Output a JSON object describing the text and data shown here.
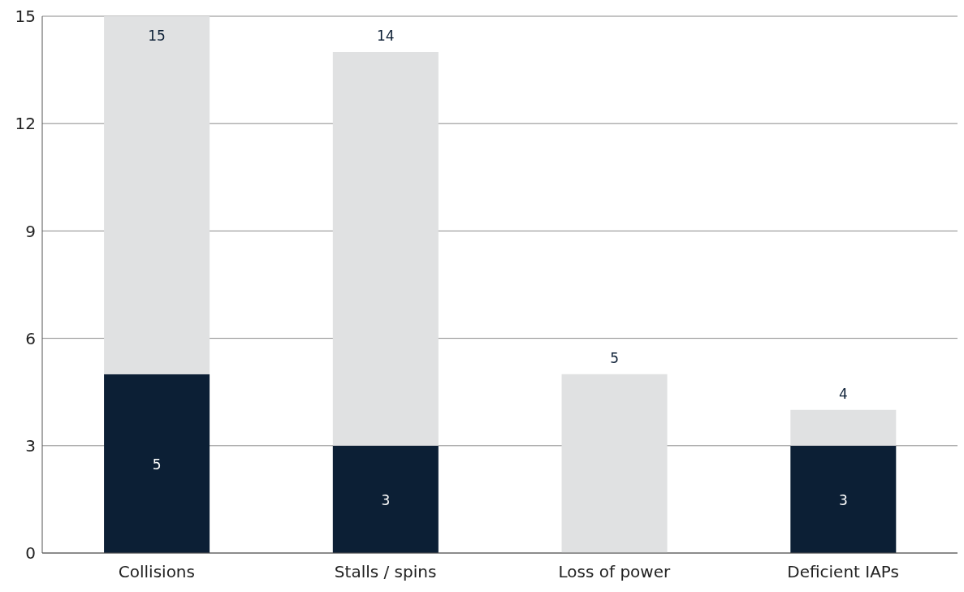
{
  "chart_data": {
    "type": "bar",
    "stacked": true,
    "categories": [
      "Collisions",
      "Stalls / spins",
      "Loss of power",
      "Deficient IAPs"
    ],
    "series": [
      {
        "color": "#0c1f35",
        "values": [
          5,
          3,
          null,
          3
        ],
        "value_labels": [
          "5",
          "3",
          null,
          "3"
        ]
      },
      {
        "color": "#e0e1e2",
        "values": [
          10,
          11,
          5,
          1
        ]
      }
    ],
    "totals": [
      "15",
      "14",
      "5",
      "4"
    ],
    "ylim": [
      0,
      15
    ],
    "yticks": [
      0,
      3,
      6,
      9,
      12,
      15
    ],
    "grid": "y"
  }
}
